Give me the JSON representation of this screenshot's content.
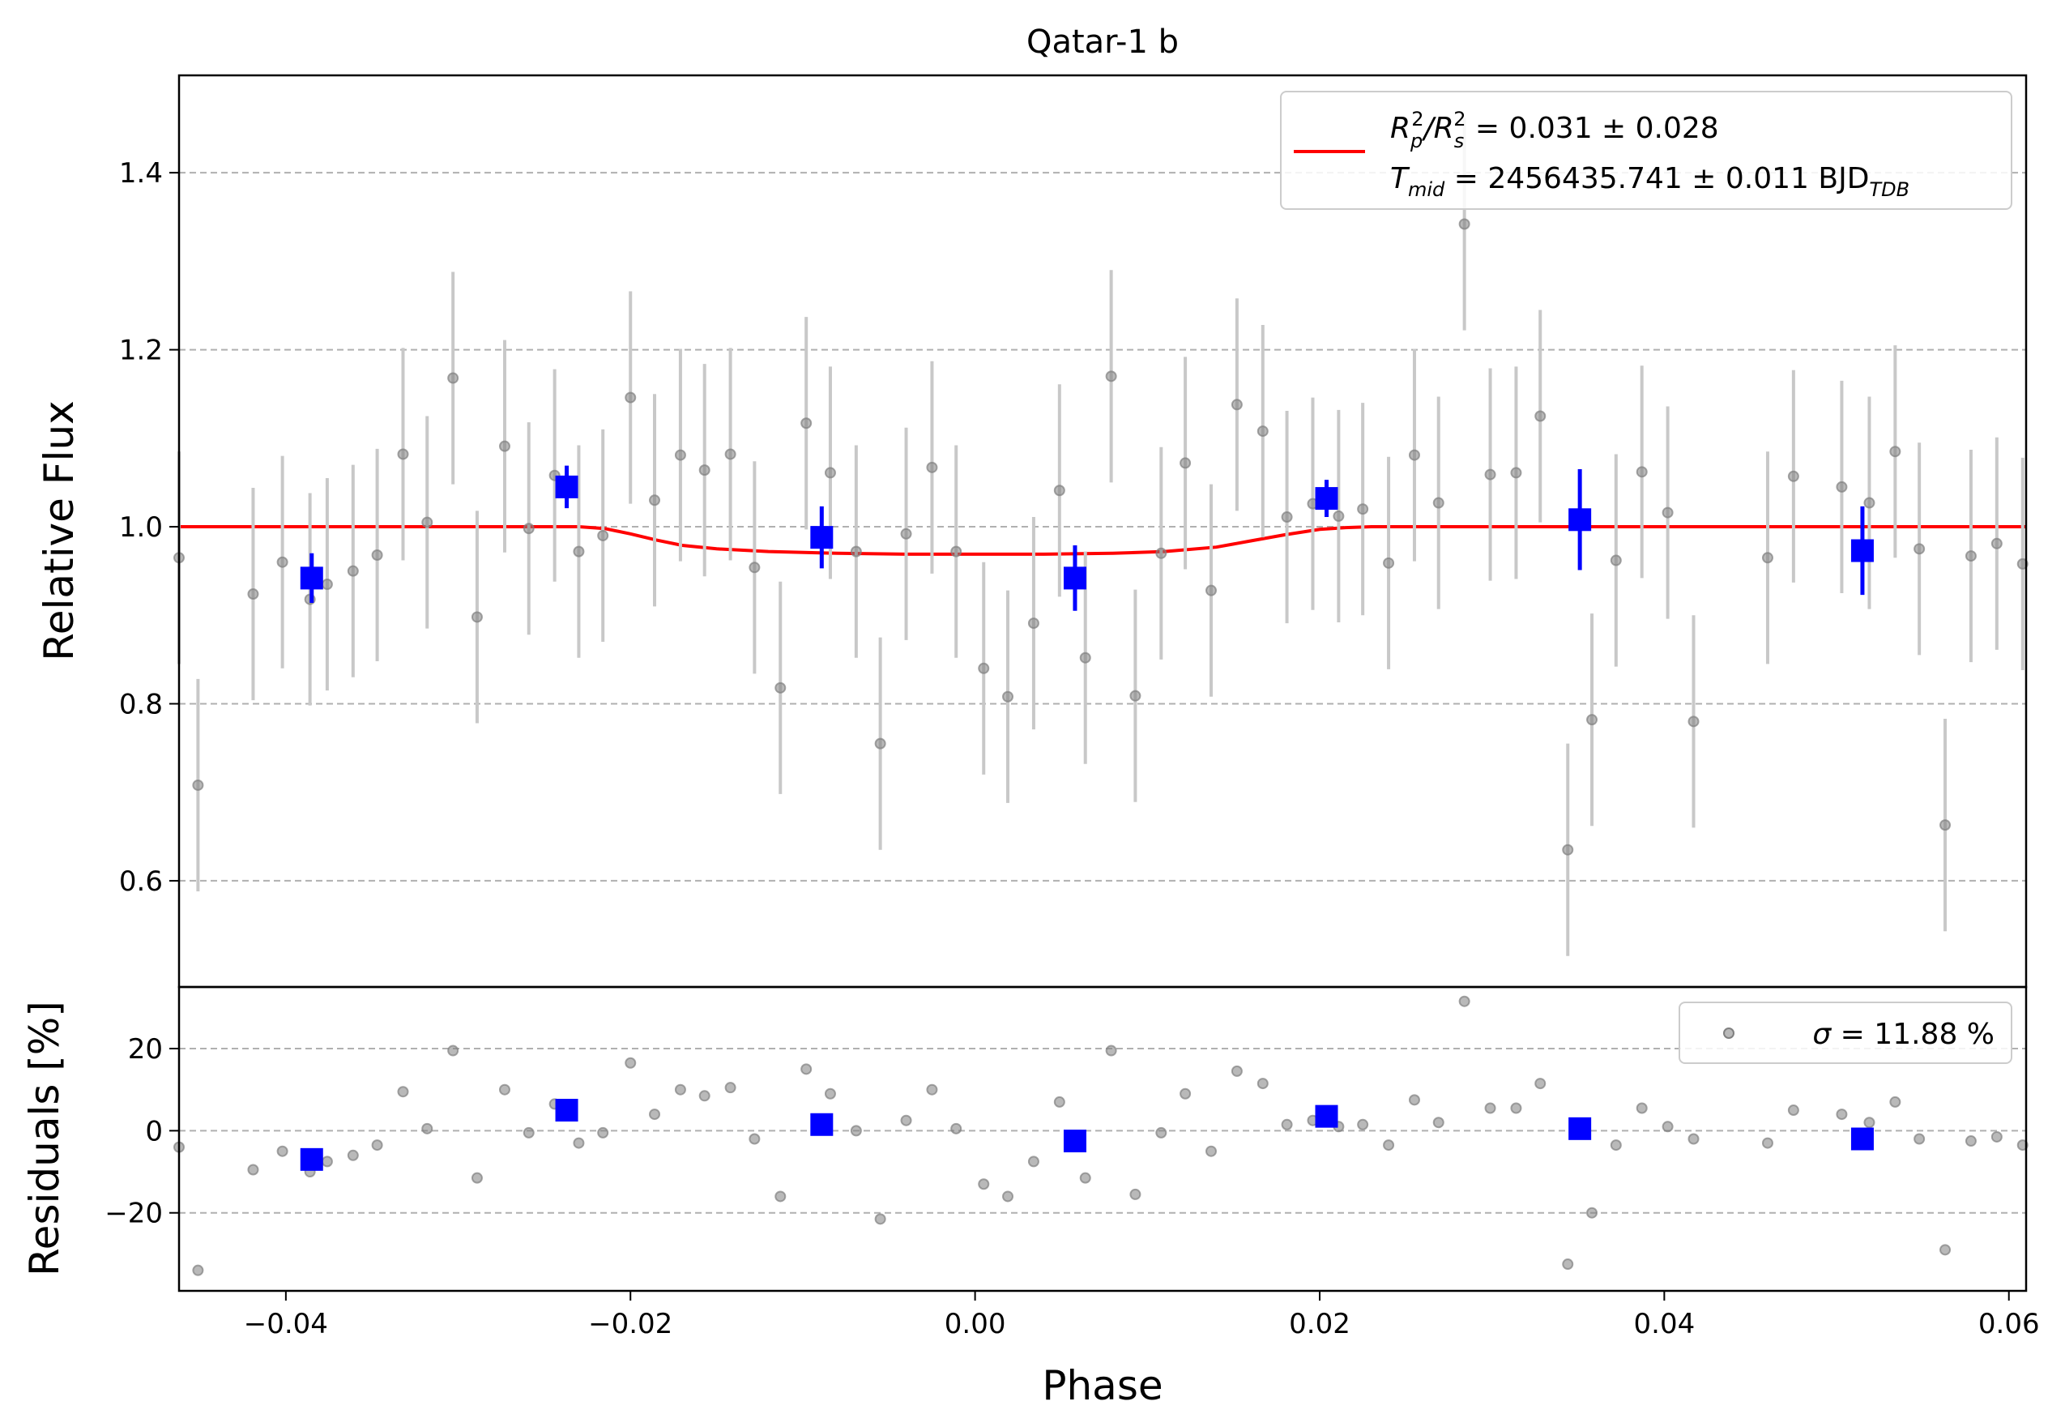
{
  "chart_data": {
    "type": "scatter",
    "title": "Qatar-1 b",
    "xlabel": "Phase",
    "xlim": [
      -0.0462,
      0.061
    ],
    "xticks": [
      -0.04,
      -0.02,
      0.0,
      0.02,
      0.04,
      0.06
    ],
    "xtick_labels": [
      "−0.04",
      "−0.02",
      "0.00",
      "0.02",
      "0.04",
      "0.06"
    ],
    "grid": true,
    "panels": {
      "flux": {
        "ylabel": "Relative Flux",
        "ylim": [
          0.48,
          1.51
        ],
        "yticks": [
          0.6,
          0.8,
          1.0,
          1.2,
          1.4
        ],
        "ytick_labels": [
          "0.6",
          "0.8",
          "1.0",
          "1.2",
          "1.4"
        ],
        "legend": {
          "placement": "top-right",
          "line1": {
            "sym": "R",
            "sub1": "p",
            "sup1": "2",
            "slash": "/",
            "sub2": "s",
            "sup2": "2",
            "value": " = 0.031 ± 0.028"
          },
          "line2": {
            "sym": "T",
            "sub": "mid",
            "value": " = 2456435.741 ± 0.011 BJD",
            "unit_sub": "TDB"
          }
        }
      },
      "residuals": {
        "ylabel": "Residuals [%]",
        "ylim": [
          -39,
          35
        ],
        "yticks": [
          -20,
          0,
          20
        ],
        "ytick_labels": [
          "−20",
          "0",
          "20"
        ],
        "legend": {
          "placement": "top-right",
          "sym": "σ",
          "value": " = 11.88 %"
        }
      }
    },
    "colors": {
      "data": "#808080",
      "errorbar": "#c8c8c8",
      "binned": "#0000ff",
      "model": "#ff0000",
      "grid": "#b0b0b0"
    },
    "series": [
      {
        "kind": "data",
        "x": [
          -0.0462,
          -0.0451,
          -0.0419,
          -0.0402,
          -0.0386,
          -0.0376,
          -0.0361,
          -0.0347,
          -0.0332,
          -0.0318,
          -0.0303,
          -0.0289,
          -0.0273,
          -0.0259,
          -0.0244,
          -0.023,
          -0.0216,
          -0.02,
          -0.0186,
          -0.0171,
          -0.0157,
          -0.0142,
          -0.0128,
          -0.0113,
          -0.0098,
          -0.0084,
          -0.0069,
          -0.0055,
          -0.004,
          -0.0025,
          -0.0011,
          0.0005,
          0.0019,
          0.0034,
          0.0049,
          0.0064,
          0.0079,
          0.0093,
          0.0108,
          0.0122,
          0.0137,
          0.0152,
          0.0167,
          0.0181,
          0.0196,
          0.0211,
          0.0225,
          0.024,
          0.0255,
          0.0269,
          0.0284,
          0.0299,
          0.0314,
          0.0328,
          0.0344,
          0.0358,
          0.0372,
          0.0387,
          0.0402,
          0.0417,
          0.046,
          0.0475,
          0.0503,
          0.0519,
          0.0534,
          0.0548,
          0.0563,
          0.0578,
          0.0593,
          0.0608
        ],
        "y": [
          0.965,
          0.708,
          0.924,
          0.96,
          0.918,
          0.935,
          0.95,
          0.968,
          1.082,
          1.005,
          1.168,
          0.898,
          1.091,
          0.998,
          1.058,
          0.972,
          0.99,
          1.146,
          1.03,
          1.081,
          1.064,
          1.082,
          0.954,
          0.818,
          1.117,
          1.061,
          0.972,
          0.755,
          0.992,
          1.067,
          0.972,
          0.84,
          0.808,
          0.891,
          1.041,
          0.852,
          1.17,
          0.809,
          0.97,
          1.072,
          0.928,
          1.138,
          1.108,
          1.011,
          1.026,
          1.012,
          1.02,
          0.959,
          1.081,
          1.027,
          1.342,
          1.059,
          1.061,
          1.125,
          0.635,
          0.782,
          0.962,
          1.062,
          1.016,
          0.78,
          0.965,
          1.057,
          1.045,
          1.027,
          1.085,
          0.975,
          0.663,
          0.967,
          0.981,
          0.958
        ],
        "yerr": 0.12,
        "residuals": [
          -4.0,
          -34.0,
          -9.5,
          -5.0,
          -10.0,
          -7.5,
          -6.0,
          -3.5,
          9.5,
          0.5,
          19.5,
          -11.5,
          10.0,
          -0.5,
          6.5,
          -3.0,
          -0.5,
          16.5,
          4.0,
          10.0,
          8.5,
          10.5,
          -2.0,
          -16.0,
          15.0,
          9.0,
          0.0,
          -21.5,
          2.5,
          10.0,
          0.5,
          -13.0,
          -16.0,
          -7.5,
          7.0,
          -11.5,
          19.5,
          -15.5,
          -0.5,
          9.0,
          -5.0,
          14.5,
          11.5,
          1.5,
          2.5,
          1.0,
          1.5,
          -3.5,
          7.5,
          2.0,
          31.5,
          5.5,
          5.5,
          11.5,
          -32.5,
          -20.0,
          -3.5,
          5.5,
          1.0,
          -2.0,
          -3.0,
          5.0,
          4.0,
          2.0,
          7.0,
          -2.0,
          -29.0,
          -2.5,
          -1.5,
          -3.5
        ]
      },
      {
        "kind": "binned",
        "x": [
          -0.0385,
          -0.0237,
          -0.0089,
          0.0058,
          0.0204,
          0.0351,
          0.0515
        ],
        "y": [
          0.942,
          1.045,
          0.988,
          0.942,
          1.032,
          1.008,
          0.973
        ],
        "yerr": [
          0.028,
          0.024,
          0.035,
          0.037,
          0.021,
          0.057,
          0.05
        ],
        "residuals": [
          -7.0,
          5.0,
          1.5,
          -2.5,
          3.5,
          0.5,
          -2.0
        ]
      },
      {
        "kind": "model",
        "x": [
          -0.0462,
          -0.023,
          -0.0215,
          -0.02,
          -0.0185,
          -0.017,
          -0.015,
          -0.012,
          -0.008,
          -0.004,
          0.0,
          0.004,
          0.008,
          0.011,
          0.014,
          0.016,
          0.018,
          0.02,
          0.0215,
          0.023,
          0.061
        ],
        "y": [
          1.0,
          1.0,
          0.998,
          0.992,
          0.985,
          0.979,
          0.975,
          0.972,
          0.97,
          0.969,
          0.969,
          0.969,
          0.97,
          0.972,
          0.977,
          0.984,
          0.991,
          0.997,
          0.999,
          1.0,
          1.0
        ]
      }
    ]
  }
}
